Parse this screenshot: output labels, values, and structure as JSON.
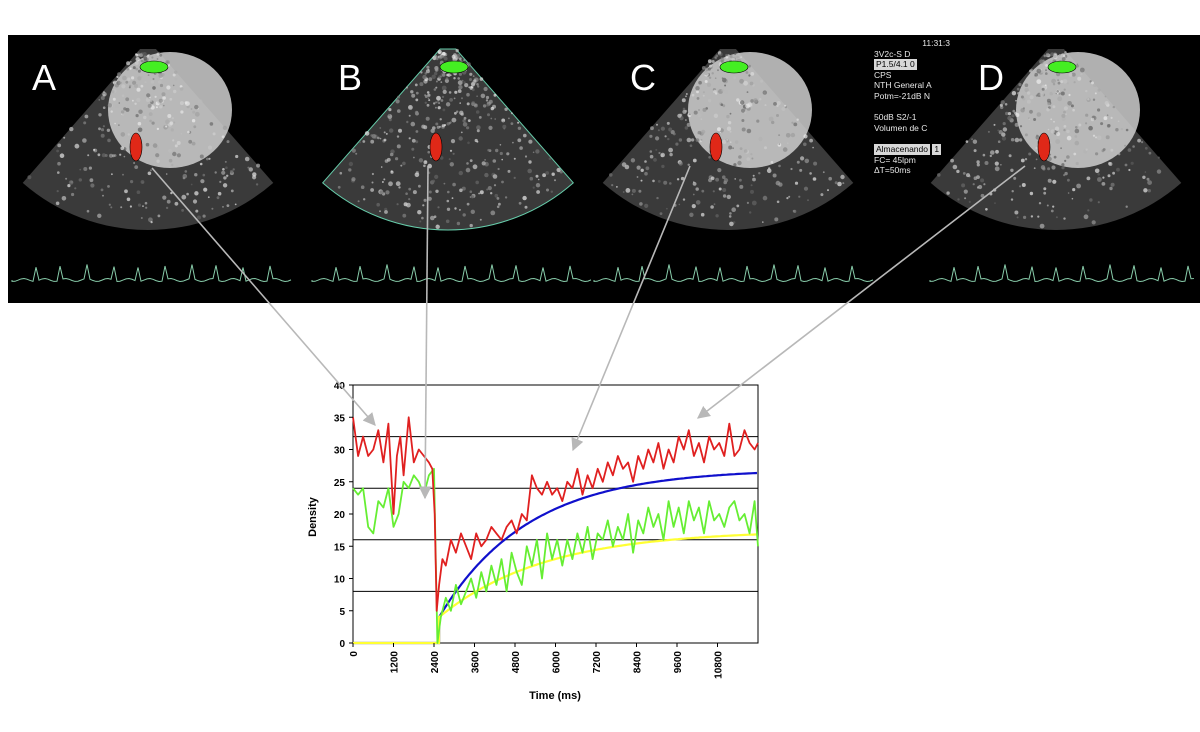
{
  "panels": [
    {
      "letter": "A"
    },
    {
      "letter": "B"
    },
    {
      "letter": "C"
    },
    {
      "letter": "D"
    }
  ],
  "overlay": {
    "lines": [
      "11:31:3",
      "3V2c-S   D",
      "P1.5/4.1  0",
      "CPS",
      "NTH General A",
      "Potm=-21dB N",
      "",
      "50dB  S2/-1",
      "Volumen de C",
      "",
      "Almacenando",
      "          1",
      "FC= 45lpm",
      "ΔT=50ms"
    ]
  },
  "colors": {
    "red_curve": "#e02020",
    "green_curve": "#66ee33",
    "blue_fit": "#1010cc",
    "yellow_fit": "#ffff33",
    "roi_green": "#44ee22",
    "roi_red": "#e02818",
    "ecg": "#88ccaa",
    "arrow": "#b8b8b8"
  },
  "chart_data": {
    "type": "line",
    "xlabel": "Time (ms)",
    "ylabel": "Density",
    "xlim": [
      0,
      12000
    ],
    "ylim": [
      0,
      40
    ],
    "x_ticks": [
      0,
      1200,
      2400,
      3600,
      4800,
      6000,
      7200,
      8400,
      9600,
      10800
    ],
    "y_ticks": [
      0,
      5,
      10,
      15,
      20,
      25,
      30,
      35,
      40
    ],
    "horizontal_lines": [
      8,
      16,
      24,
      32
    ],
    "fits": [
      {
        "color": "blue",
        "baseline": 0,
        "start_ms": 2550,
        "initial": 4,
        "plateau": 27,
        "rate_per_ms": 0.00038
      },
      {
        "color": "yellow",
        "baseline": 0,
        "start_ms": 2550,
        "initial": 4,
        "plateau": 17.5,
        "rate_per_ms": 0.00032
      }
    ],
    "series": [
      {
        "color": "red",
        "x": [
          0,
          150,
          300,
          450,
          600,
          750,
          900,
          1050,
          1200,
          1300,
          1400,
          1500,
          1650,
          1800,
          1950,
          2100,
          2250,
          2350,
          2420,
          2480,
          2550,
          2650,
          2750,
          2900,
          3050,
          3200,
          3350,
          3500,
          3650,
          3800,
          3950,
          4100,
          4250,
          4400,
          4550,
          4700,
          4850,
          5000,
          5150,
          5300,
          5450,
          5600,
          5750,
          5900,
          6050,
          6200,
          6350,
          6500,
          6650,
          6800,
          6950,
          7100,
          7250,
          7400,
          7550,
          7700,
          7850,
          8000,
          8150,
          8300,
          8450,
          8600,
          8750,
          8900,
          9050,
          9200,
          9350,
          9500,
          9650,
          9800,
          9950,
          10100,
          10250,
          10400,
          10550,
          10700,
          10850,
          11000,
          11150,
          11300,
          11450,
          11600,
          11750,
          11900,
          12000
        ],
        "y": [
          35,
          29,
          32,
          29,
          30,
          33,
          28,
          34,
          20,
          29,
          32,
          26,
          35,
          28,
          30,
          29,
          28,
          27,
          20,
          5,
          9,
          13,
          12,
          16,
          14,
          17,
          15,
          13,
          17,
          15,
          16,
          18,
          17,
          16,
          18,
          19,
          17,
          20,
          19,
          26,
          24,
          23,
          25,
          23,
          24,
          22,
          25,
          24,
          27,
          23,
          26,
          24,
          27,
          25,
          28,
          26,
          29,
          27,
          28,
          25,
          29,
          27,
          30,
          28,
          31,
          27,
          30,
          28,
          32,
          30,
          33,
          29,
          31,
          28,
          32,
          30,
          31,
          29,
          34,
          29,
          30,
          33,
          31,
          30,
          31
        ]
      },
      {
        "color": "green",
        "x": [
          0,
          150,
          300,
          450,
          600,
          750,
          900,
          1050,
          1200,
          1350,
          1500,
          1650,
          1800,
          1950,
          2100,
          2250,
          2400,
          2500,
          2600,
          2750,
          2900,
          3050,
          3200,
          3350,
          3500,
          3650,
          3800,
          3950,
          4100,
          4250,
          4400,
          4550,
          4700,
          4850,
          5000,
          5150,
          5300,
          5450,
          5600,
          5750,
          5900,
          6050,
          6200,
          6350,
          6500,
          6650,
          6800,
          6950,
          7100,
          7250,
          7400,
          7550,
          7700,
          7850,
          8000,
          8150,
          8300,
          8450,
          8600,
          8750,
          8900,
          9050,
          9200,
          9350,
          9500,
          9650,
          9800,
          9950,
          10100,
          10250,
          10400,
          10550,
          10700,
          10850,
          11000,
          11150,
          11300,
          11450,
          11600,
          11750,
          11900,
          12000
        ],
        "y": [
          24,
          23,
          24,
          18,
          17,
          22,
          21,
          24,
          18,
          20,
          25,
          24,
          26,
          25,
          23,
          26,
          27,
          0,
          4,
          7,
          5,
          9,
          6,
          8,
          10,
          7,
          11,
          8,
          12,
          9,
          13,
          8,
          14,
          11,
          9,
          15,
          12,
          16,
          10,
          17,
          13,
          16,
          12,
          16,
          13,
          17,
          14,
          18,
          13,
          17,
          16,
          19,
          15,
          18,
          16,
          20,
          14,
          19,
          17,
          21,
          18,
          20,
          16,
          22,
          18,
          21,
          17,
          22,
          19,
          21,
          17,
          22,
          19,
          20,
          18,
          21,
          22,
          19,
          20,
          17,
          22,
          15
        ]
      }
    ]
  }
}
